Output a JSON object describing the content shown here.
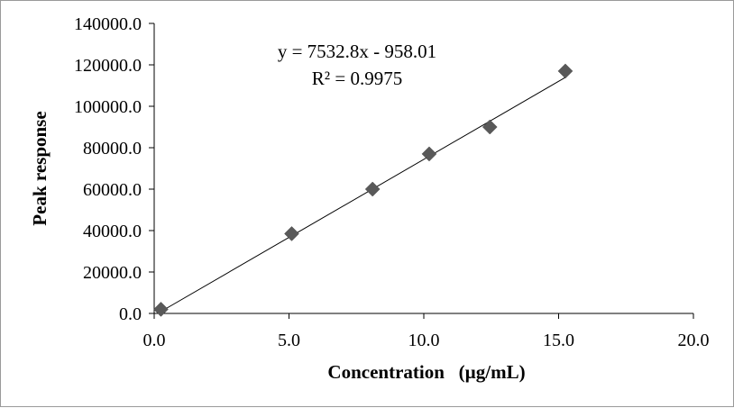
{
  "chart_data": {
    "type": "scatter",
    "xlabel": "Concentration   (µg/mL)",
    "ylabel": "Peak response",
    "xlim": [
      0,
      20
    ],
    "ylim": [
      0,
      140000
    ],
    "x_ticks": [
      0,
      5,
      10,
      15,
      20
    ],
    "y_ticks": [
      0,
      20000,
      40000,
      60000,
      80000,
      100000,
      120000,
      140000
    ],
    "x_tick_labels": [
      "0.0",
      "5.0",
      "10.0",
      "15.0",
      "20.0"
    ],
    "y_tick_labels": [
      "0.0",
      "20000.0",
      "40000.0",
      "60000.0",
      "80000.0",
      "100000.0",
      "120000.0",
      "140000.0"
    ],
    "grid": false,
    "legend": false,
    "marker": "diamond",
    "marker_color": "#595959",
    "line_color": "#000000",
    "series": [
      {
        "x": [
          0.25,
          5.1,
          8.1,
          10.2,
          12.45,
          15.25
        ],
        "y": [
          2000,
          38500,
          60000,
          77000,
          90000,
          117000
        ]
      }
    ],
    "trendline": {
      "type": "linear",
      "slope": 7532.8,
      "intercept": -958.01,
      "x_range": [
        0.25,
        15.25
      ],
      "equation": "y = 7532.8x  - 958.01",
      "r_squared": "R² = 0.9975"
    }
  }
}
